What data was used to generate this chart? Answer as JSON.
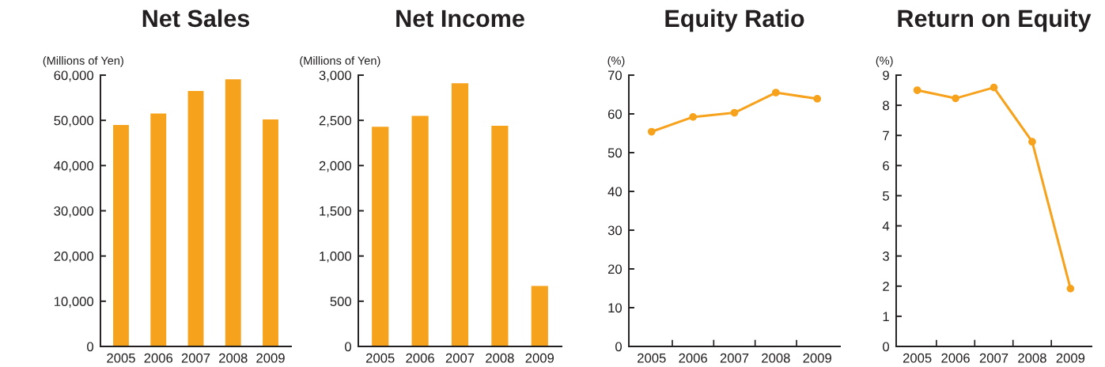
{
  "chart_data": [
    {
      "type": "bar",
      "title": "Net Sales",
      "ylabel": "(Millions of Yen)",
      "categories": [
        "2005",
        "2006",
        "2007",
        "2008",
        "2009"
      ],
      "values": [
        49000,
        51500,
        56500,
        59100,
        50200
      ],
      "color": "#f7a21c",
      "ylim": [
        0,
        60000
      ],
      "yticks": [
        {
          "value": 0,
          "label": "0"
        },
        {
          "value": 10000,
          "label": "10,000"
        },
        {
          "value": 20000,
          "label": "20,000"
        },
        {
          "value": 30000,
          "label": "30,000"
        },
        {
          "value": 40000,
          "label": "40,000"
        },
        {
          "value": 50000,
          "label": "50,000"
        },
        {
          "value": 60000,
          "label": "60,000"
        }
      ],
      "grid": false
    },
    {
      "type": "bar",
      "title": "Net Income",
      "ylabel": "(Millions of Yen)",
      "categories": [
        "2005",
        "2006",
        "2007",
        "2008",
        "2009"
      ],
      "values": [
        2430,
        2550,
        2910,
        2440,
        670
      ],
      "color": "#f7a21c",
      "ylim": [
        0,
        3000
      ],
      "yticks": [
        {
          "value": 0,
          "label": "0"
        },
        {
          "value": 500,
          "label": "500"
        },
        {
          "value": 1000,
          "label": "1,000"
        },
        {
          "value": 1500,
          "label": "1,500"
        },
        {
          "value": 2000,
          "label": "2,000"
        },
        {
          "value": 2500,
          "label": "2,500"
        },
        {
          "value": 3000,
          "label": "3,000"
        }
      ],
      "grid": false
    },
    {
      "type": "line",
      "title": "Equity Ratio",
      "ylabel": "(%)",
      "categories": [
        "2005",
        "2006",
        "2007",
        "2008",
        "2009"
      ],
      "values": [
        55.4,
        59.2,
        60.3,
        65.5,
        63.9
      ],
      "color": "#f7a21c",
      "marker": "circle",
      "line_style": "solid",
      "ylim": [
        0,
        70
      ],
      "yticks": [
        0,
        10,
        20,
        30,
        40,
        50,
        60,
        70
      ],
      "grid": false
    },
    {
      "type": "line",
      "title": "Return on Equity",
      "ylabel": "(%)",
      "categories": [
        "2005",
        "2006",
        "2007",
        "2008",
        "2009"
      ],
      "values": [
        8.5,
        8.23,
        8.59,
        6.79,
        1.92
      ],
      "color": "#f7a21c",
      "marker": "circle",
      "line_style": "solid",
      "ylim": [
        0,
        9
      ],
      "yticks": [
        0,
        1,
        2,
        3,
        4,
        5,
        6,
        7,
        8,
        9
      ],
      "grid": false
    }
  ]
}
